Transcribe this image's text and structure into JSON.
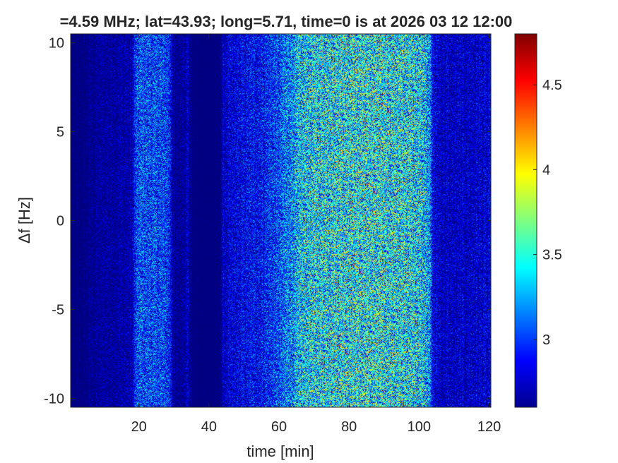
{
  "chart_data": {
    "type": "heatmap",
    "title": "=4.59 MHz;  lat=43.93; long=5.71, time=0 is at 2026 03 12 12:00",
    "xlabel": "time [min]",
    "ylabel": "Δf [Hz]",
    "xlim": [
      0.5,
      120.5
    ],
    "ylim": [
      -10.5,
      10.5
    ],
    "x_ticks": [
      20,
      40,
      60,
      80,
      100,
      120
    ],
    "y_ticks": [
      -10,
      -5,
      0,
      5,
      10
    ],
    "colorbar": {
      "colormap": "jet",
      "clim": [
        2.6,
        4.8
      ],
      "ticks": [
        3,
        3.5,
        4,
        4.5
      ]
    },
    "intensity_profile_vs_time": {
      "time_min": [
        0,
        4,
        6,
        10,
        14,
        18,
        19,
        20,
        25,
        28,
        29,
        30,
        32,
        34,
        35,
        38,
        42,
        43,
        44,
        50,
        55,
        58,
        60,
        62,
        64,
        66,
        68,
        72,
        78,
        84,
        90,
        96,
        100,
        102,
        103,
        104,
        106,
        110,
        114,
        118,
        120
      ],
      "mean_level": [
        2.65,
        2.66,
        2.72,
        2.76,
        2.78,
        2.8,
        3.05,
        3.15,
        3.12,
        3.1,
        3.0,
        2.72,
        2.75,
        2.85,
        2.66,
        2.62,
        2.62,
        2.64,
        2.85,
        2.95,
        3.0,
        3.08,
        3.12,
        3.24,
        3.3,
        3.42,
        3.48,
        3.52,
        3.56,
        3.56,
        3.55,
        3.52,
        3.5,
        3.42,
        3.3,
        2.92,
        2.86,
        2.85,
        2.86,
        2.88,
        2.88
      ]
    },
    "grid": false
  }
}
